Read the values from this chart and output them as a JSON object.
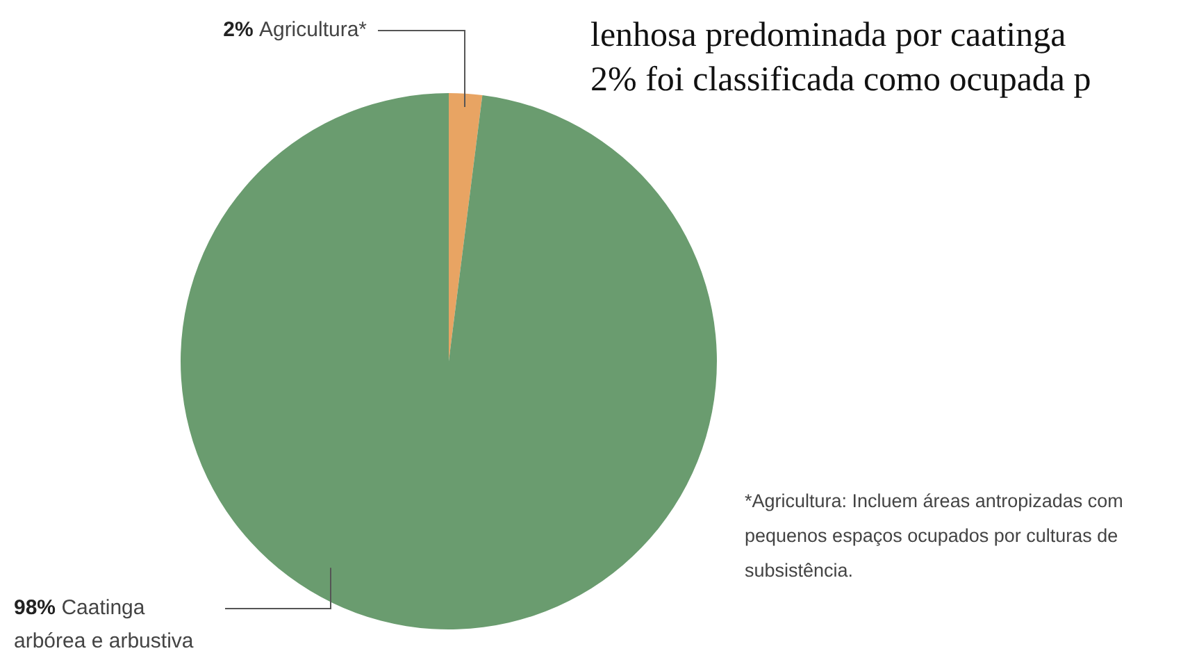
{
  "chart_data": {
    "type": "pie",
    "categories": [
      "Agricultura*",
      "Caatinga arbórea e arbustiva"
    ],
    "values": [
      2,
      98
    ],
    "colors": [
      "#e8a463",
      "#6a9c6f"
    ],
    "value_labels": [
      "2%",
      "98%"
    ],
    "legend": false,
    "annotations": [
      "lenhosa predominada por caatinga",
      "2% foi classificada como ocupada p",
      "*Agricultura: Incluem áreas antropizadas com pequenos espaços ocupados por culturas de subsistência."
    ]
  }
}
